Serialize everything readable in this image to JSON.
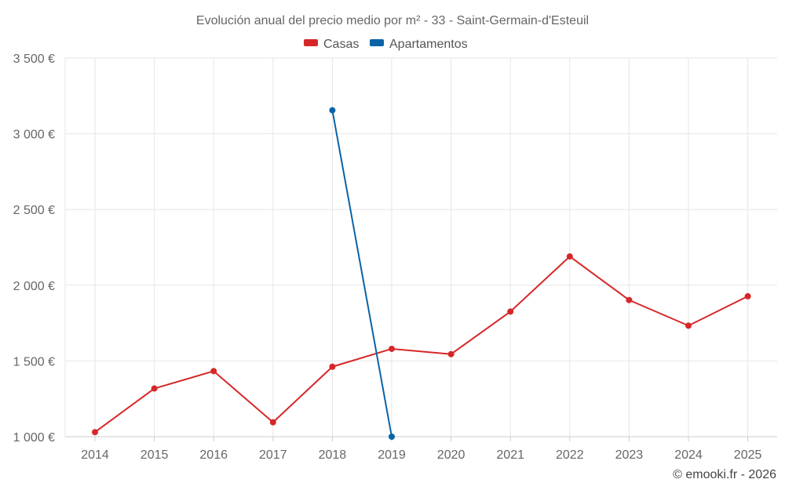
{
  "chart_data": {
    "type": "line",
    "title": "Evolución anual del precio medio por m² - 33 - Saint-Germain-d'Esteuil",
    "categories": [
      "2014",
      "2015",
      "2016",
      "2017",
      "2018",
      "2019",
      "2020",
      "2021",
      "2022",
      "2023",
      "2024",
      "2025"
    ],
    "series": [
      {
        "name": "Casas",
        "color": "#d62728",
        "values": [
          1030,
          1318,
          1433,
          1095,
          1462,
          1580,
          1545,
          1826,
          2190,
          1902,
          1733,
          1927
        ]
      },
      {
        "name": "Apartamentos",
        "color": "#0a63a6",
        "values": [
          null,
          null,
          null,
          null,
          3155,
          1000,
          null,
          null,
          null,
          null,
          null,
          null
        ]
      }
    ],
    "ylim": [
      1000,
      3500
    ],
    "yticks": [
      1000,
      1500,
      2000,
      2500,
      3000,
      3500
    ],
    "ytick_labels": [
      "1 000 €",
      "1 500 €",
      "2 000 €",
      "2 500 €",
      "3 000 €",
      "3 500 €"
    ],
    "xlabel": "",
    "ylabel": "",
    "grid": true,
    "legend_position": "top-center"
  },
  "credit": "© emooki.fr - 2026"
}
